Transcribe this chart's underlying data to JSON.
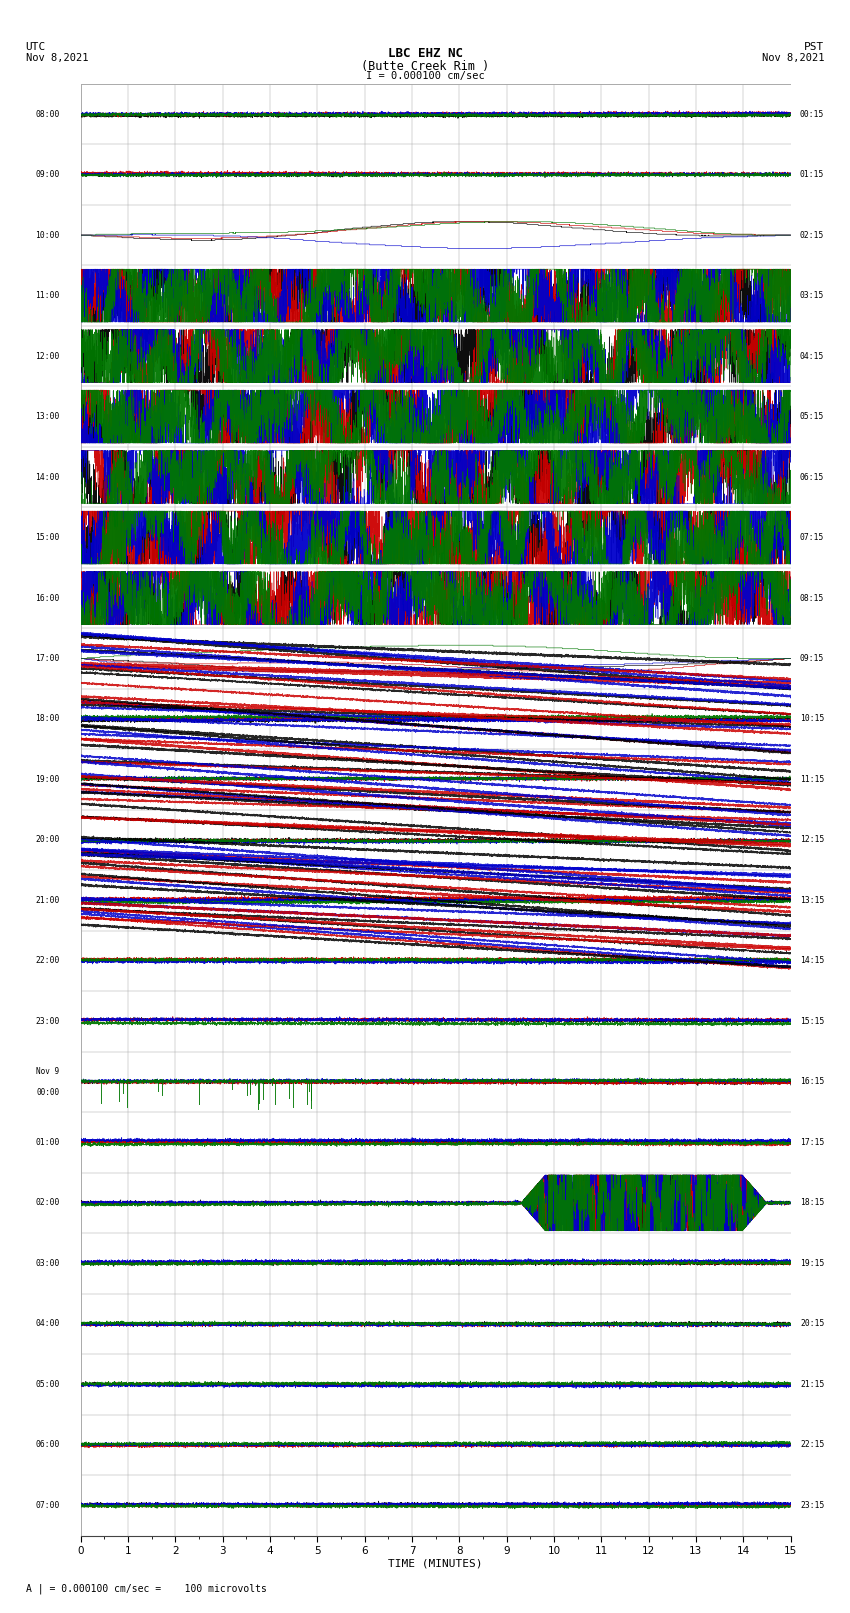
{
  "title_line1": "LBC EHZ NC",
  "title_line2": "(Butte Creek Rim )",
  "title_line3": "I = 0.000100 cm/sec",
  "label_utc": "UTC",
  "label_utc_date": "Nov 8,2021",
  "label_pst": "PST",
  "label_pst_date": "Nov 8,2021",
  "xlabel": "TIME (MINUTES)",
  "footer": "A | = 0.000100 cm/sec =    100 microvolts",
  "xmin": 0,
  "xmax": 15,
  "num_rows": 24,
  "utc_labels": [
    "08:00",
    "09:00",
    "10:00",
    "11:00",
    "12:00",
    "13:00",
    "14:00",
    "15:00",
    "16:00",
    "17:00",
    "18:00",
    "19:00",
    "20:00",
    "21:00",
    "22:00",
    "23:00",
    "Nov 9\n00:00",
    "01:00",
    "02:00",
    "03:00",
    "04:00",
    "05:00",
    "06:00",
    "07:00"
  ],
  "pst_labels": [
    "00:15",
    "01:15",
    "02:15",
    "03:15",
    "04:15",
    "05:15",
    "06:15",
    "07:15",
    "08:15",
    "09:15",
    "10:15",
    "11:15",
    "12:15",
    "13:15",
    "14:15",
    "15:15",
    "16:15",
    "17:15",
    "18:15",
    "19:15",
    "20:15",
    "21:15",
    "22:15",
    "23:15"
  ],
  "bg_color": "#ffffff",
  "grid_color": "#aaaaaa",
  "trace_colors": [
    "#000000",
    "#cc0000",
    "#0000cc",
    "#007700"
  ],
  "noisy_rows_idx": [
    3,
    4,
    5,
    6,
    7,
    8
  ],
  "medium_rows_idx": [
    2,
    9
  ],
  "diagonal_rows_idx": [
    9,
    10,
    11,
    12,
    13
  ],
  "event_row_idx": 18,
  "event_xstart": 9.3,
  "event_xend": 14.5,
  "nov9_row_idx": 16,
  "seed": 42
}
